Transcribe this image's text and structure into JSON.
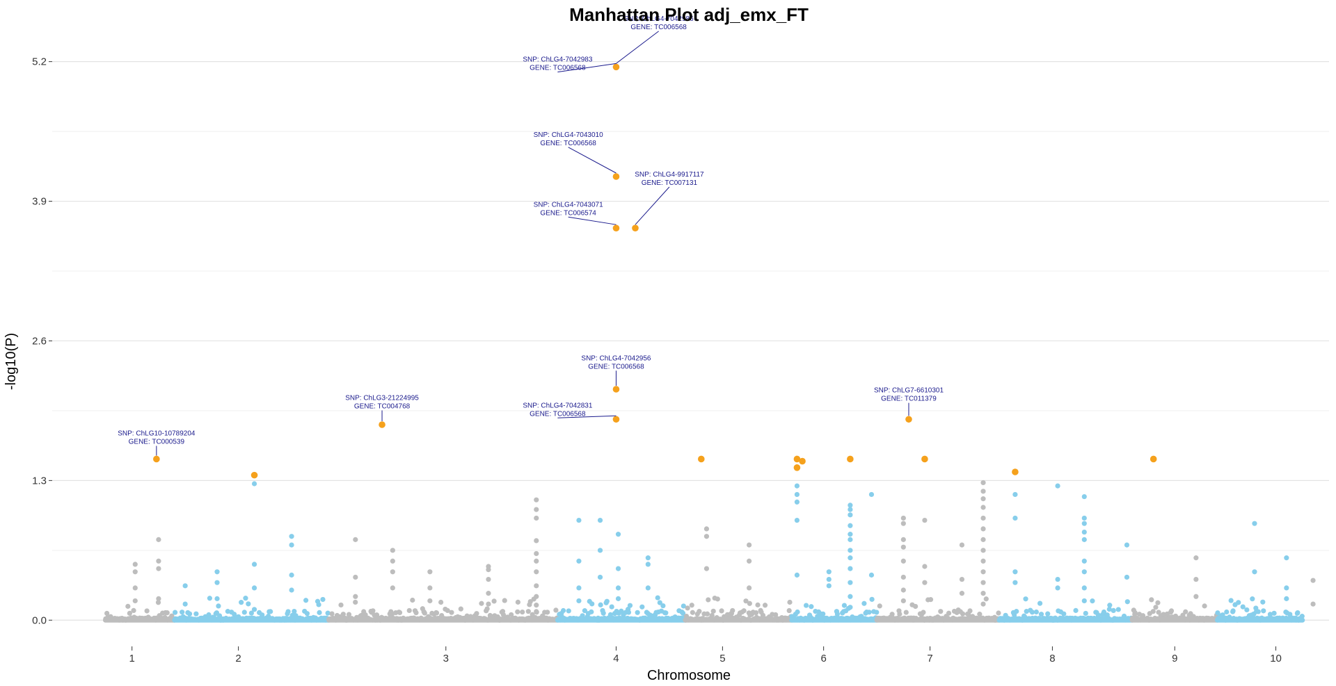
{
  "chart_data": {
    "type": "scatter",
    "title": "Manhattan Plot adj_emx_FT",
    "xlabel": "Chromosome",
    "ylabel": "-log10(P)",
    "ylim": [
      -0.05,
      5.45
    ],
    "yticks": [
      0.0,
      1.3,
      2.6,
      3.9,
      5.2
    ],
    "ytick_labels": [
      "0.0",
      "1.3",
      "2.6",
      "3.9",
      "5.2"
    ],
    "xlim": [
      0.0,
      12.0
    ],
    "grid": true,
    "colors": {
      "odd": "#bdbdbd",
      "even": "#87ceeb",
      "highlight": "#f5a11c",
      "annotation": "#1a1a8c"
    },
    "chromosomes": [
      {
        "label": "1",
        "tick": 0.75,
        "span": [
          0.5,
          1.15
        ]
      },
      {
        "label": "2",
        "tick": 1.75,
        "span": [
          1.15,
          2.6
        ]
      },
      {
        "label": "3",
        "tick": 3.7,
        "span": [
          2.6,
          4.75
        ]
      },
      {
        "label": "4",
        "tick": 5.3,
        "span": [
          4.75,
          5.95
        ]
      },
      {
        "label": "5",
        "tick": 6.3,
        "span": [
          5.95,
          6.95
        ]
      },
      {
        "label": "6",
        "tick": 7.25,
        "span": [
          6.95,
          7.75
        ]
      },
      {
        "label": "7",
        "tick": 8.25,
        "span": [
          7.75,
          8.9
        ]
      },
      {
        "label": "8",
        "tick": 9.4,
        "span": [
          8.9,
          10.15
        ]
      },
      {
        "label": "9",
        "tick": 10.55,
        "span": [
          10.15,
          10.95
        ]
      },
      {
        "label": "10",
        "tick": 11.5,
        "span": [
          10.95,
          11.75
        ]
      }
    ],
    "highlights": [
      {
        "x": 0.98,
        "y": 1.5
      },
      {
        "x": 1.9,
        "y": 1.35
      },
      {
        "x": 3.1,
        "y": 1.82
      },
      {
        "x": 5.3,
        "y": 1.87
      },
      {
        "x": 5.3,
        "y": 2.15
      },
      {
        "x": 5.3,
        "y": 3.65
      },
      {
        "x": 5.48,
        "y": 3.65
      },
      {
        "x": 5.3,
        "y": 4.13
      },
      {
        "x": 5.3,
        "y": 5.15
      },
      {
        "x": 6.1,
        "y": 1.5
      },
      {
        "x": 7.0,
        "y": 1.5
      },
      {
        "x": 7.0,
        "y": 1.42
      },
      {
        "x": 7.05,
        "y": 1.48
      },
      {
        "x": 7.5,
        "y": 1.5
      },
      {
        "x": 8.05,
        "y": 1.87
      },
      {
        "x": 8.2,
        "y": 1.5
      },
      {
        "x": 9.05,
        "y": 1.38
      },
      {
        "x": 10.35,
        "y": 1.5
      }
    ],
    "annotations": [
      {
        "snp": "SNP:  ChLG10-10789204",
        "gene": "GENE:  TC000539",
        "x": 0.98,
        "y": 1.5,
        "tx": 0.98,
        "ty": 1.72
      },
      {
        "snp": "SNP:  ChLG3-21224995",
        "gene": "GENE:  TC004768",
        "x": 3.1,
        "y": 1.82,
        "tx": 3.1,
        "ty": 2.05
      },
      {
        "snp": "SNP:  ChLG4-7042831",
        "gene": "GENE:  TC006568",
        "x": 5.3,
        "y": 1.87,
        "tx": 4.75,
        "ty": 1.98
      },
      {
        "snp": "SNP:  ChLG4-7042956",
        "gene": "GENE:  TC006568",
        "x": 5.3,
        "y": 2.15,
        "tx": 5.3,
        "ty": 2.42
      },
      {
        "snp": "SNP:  ChLG4-7043071",
        "gene": "GENE:  TC006574",
        "x": 5.3,
        "y": 3.65,
        "tx": 4.85,
        "ty": 3.85
      },
      {
        "snp": "SNP:  ChLG4-9917117",
        "gene": "GENE:  TC007131",
        "x": 5.48,
        "y": 3.65,
        "tx": 5.8,
        "ty": 4.13
      },
      {
        "snp": "SNP:  ChLG4-7043010",
        "gene": "GENE:  TC006568",
        "x": 5.3,
        "y": 4.13,
        "tx": 4.85,
        "ty": 4.5
      },
      {
        "snp": "SNP:  ChLG4-7042983",
        "gene": "GENE:  TC006568",
        "x": 5.3,
        "y": 5.15,
        "tx": 4.75,
        "ty": 5.2
      },
      {
        "snp": "SNP:  ChLG4-7042986",
        "gene": "GENE:  TC006568",
        "x": 5.3,
        "y": 5.15,
        "tx": 5.7,
        "ty": 5.58
      },
      {
        "snp": "SNP:  ChLG7-6610301",
        "gene": "GENE:  TC011379",
        "x": 8.05,
        "y": 1.87,
        "tx": 8.05,
        "ty": 2.12
      }
    ],
    "columns": [
      {
        "x": 0.78,
        "ys": [
          0.45,
          0.52,
          0.3,
          0.18
        ]
      },
      {
        "x": 1.0,
        "ys": [
          0.75,
          0.55,
          0.48,
          0.2
        ]
      },
      {
        "x": 1.25,
        "ys": [
          0.32,
          0.15
        ]
      },
      {
        "x": 1.55,
        "ys": [
          0.45,
          0.35,
          0.2
        ]
      },
      {
        "x": 1.9,
        "ys": [
          1.27,
          0.52,
          0.3,
          0.1
        ]
      },
      {
        "x": 2.25,
        "ys": [
          0.78,
          0.7,
          0.42,
          0.28
        ]
      },
      {
        "x": 2.85,
        "ys": [
          0.75,
          0.4,
          0.22
        ]
      },
      {
        "x": 3.2,
        "ys": [
          0.55,
          0.65,
          0.45,
          0.3
        ]
      },
      {
        "x": 3.55,
        "ys": [
          0.45,
          0.3,
          0.18
        ]
      },
      {
        "x": 4.1,
        "ys": [
          0.5,
          0.47,
          0.38,
          0.25,
          0.15
        ]
      },
      {
        "x": 4.55,
        "ys": [
          1.12,
          1.03,
          0.95,
          0.74,
          0.62,
          0.55,
          0.45,
          0.32,
          0.22,
          0.14,
          0.08
        ]
      },
      {
        "x": 4.95,
        "ys": [
          0.93,
          0.55,
          0.3,
          0.18
        ]
      },
      {
        "x": 5.15,
        "ys": [
          0.93,
          0.65,
          0.4
        ]
      },
      {
        "x": 5.32,
        "ys": [
          0.8,
          0.48,
          0.3,
          0.2
        ]
      },
      {
        "x": 5.6,
        "ys": [
          0.58,
          0.52,
          0.3
        ]
      },
      {
        "x": 6.15,
        "ys": [
          0.85,
          0.78,
          0.48
        ]
      },
      {
        "x": 6.55,
        "ys": [
          0.7,
          0.55,
          0.3
        ]
      },
      {
        "x": 7.0,
        "ys": [
          1.25,
          1.17,
          1.1,
          0.93,
          0.42
        ]
      },
      {
        "x": 7.3,
        "ys": [
          0.45,
          0.38,
          0.32
        ]
      },
      {
        "x": 7.5,
        "ys": [
          1.07,
          1.03,
          0.98,
          0.88,
          0.8,
          0.75,
          0.65,
          0.58,
          0.48,
          0.35,
          0.22,
          0.12
        ]
      },
      {
        "x": 7.7,
        "ys": [
          1.17,
          0.42
        ]
      },
      {
        "x": 8.0,
        "ys": [
          0.95,
          0.9,
          0.75,
          0.68,
          0.55,
          0.4,
          0.28,
          0.18
        ]
      },
      {
        "x": 8.2,
        "ys": [
          0.93,
          0.5,
          0.35
        ]
      },
      {
        "x": 8.55,
        "ys": [
          0.7,
          0.38,
          0.25
        ]
      },
      {
        "x": 8.75,
        "ys": [
          1.28,
          1.2,
          1.13,
          1.05,
          0.95,
          0.85,
          0.75,
          0.65,
          0.55,
          0.45,
          0.35,
          0.25,
          0.15
        ]
      },
      {
        "x": 9.05,
        "ys": [
          1.17,
          0.95,
          0.45,
          0.35
        ]
      },
      {
        "x": 9.45,
        "ys": [
          1.25,
          0.38,
          0.3
        ]
      },
      {
        "x": 9.7,
        "ys": [
          1.15,
          0.95,
          0.9,
          0.82,
          0.75,
          0.55,
          0.45,
          0.3,
          0.18
        ]
      },
      {
        "x": 10.1,
        "ys": [
          0.7,
          0.4
        ]
      },
      {
        "x": 10.75,
        "ys": [
          0.58,
          0.38,
          0.22
        ]
      },
      {
        "x": 11.3,
        "ys": [
          0.9,
          0.45
        ]
      },
      {
        "x": 11.6,
        "ys": [
          0.58,
          0.3,
          0.2
        ]
      },
      {
        "x": 11.85,
        "ys": [
          0.37,
          0.15
        ]
      }
    ]
  }
}
